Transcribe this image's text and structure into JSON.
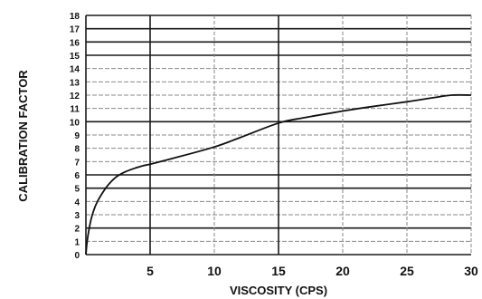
{
  "chart_data": {
    "type": "line",
    "title": "",
    "xlabel": "VISCOSITY  (CPS)",
    "ylabel": "CALIBRATION FACTOR",
    "xlim": [
      0,
      30
    ],
    "ylim": [
      0,
      18
    ],
    "x_ticks": [
      5,
      10,
      15,
      20,
      25,
      30
    ],
    "y_ticks": [
      0,
      1,
      2,
      3,
      4,
      5,
      6,
      7,
      8,
      9,
      10,
      11,
      12,
      13,
      14,
      15,
      16,
      17,
      18
    ],
    "grid": true,
    "legend": "none",
    "series": [
      {
        "x": [
          0,
          0.1,
          0.3,
          0.5,
          0.8,
          1.2,
          1.7,
          2.3,
          3,
          3.8,
          4.5,
          5,
          7,
          10,
          12,
          15,
          17,
          20,
          22,
          25,
          27,
          28.5,
          30
        ],
        "y": [
          0,
          1,
          2.2,
          3,
          3.8,
          4.5,
          5.2,
          5.8,
          6.2,
          6.5,
          6.7,
          6.8,
          7.3,
          8.1,
          8.8,
          9.9,
          10.3,
          10.8,
          11.1,
          11.5,
          11.8,
          12,
          12
        ]
      }
    ]
  },
  "colors": {
    "line": "#111111",
    "major_grid": "#1a1a1a",
    "minor_grid": "#8a8a8a",
    "text": "#111111"
  }
}
